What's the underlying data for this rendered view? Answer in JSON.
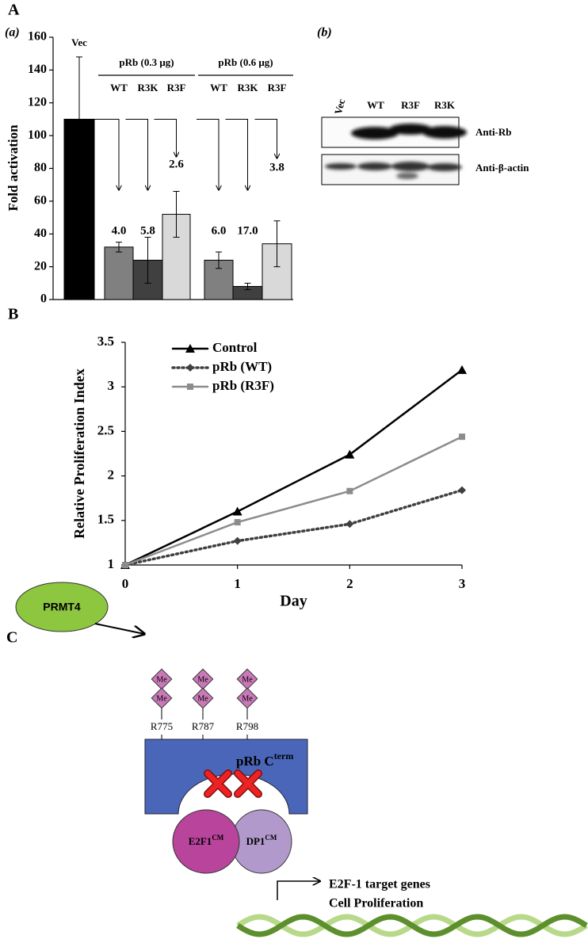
{
  "panels": {
    "A": "A",
    "B": "B",
    "C": "C"
  },
  "chart_data": [
    {
      "type": "bar",
      "panel_label": "(a)",
      "ylabel": "Fold activation",
      "categories": [
        "Vec",
        "WT",
        "R3K",
        "R3F",
        "WT",
        "R3K",
        "R3F"
      ],
      "values": [
        110,
        32,
        24,
        52,
        24,
        8,
        34
      ],
      "errors": [
        38,
        3,
        14,
        14,
        5,
        2,
        14
      ],
      "colors": [
        "#000000",
        "#808080",
        "#404040",
        "#d9d9d9",
        "#808080",
        "#404040",
        "#d9d9d9"
      ],
      "groups": [
        "pRb (0.3 μg)",
        "pRb (0.6 μg)"
      ],
      "annotations": [
        "4.0",
        "5.8",
        "2.6",
        "6.0",
        "17.0",
        "3.8"
      ],
      "ylim": [
        0,
        160
      ],
      "yticks": [
        0,
        20,
        40,
        60,
        80,
        100,
        120,
        140,
        160
      ]
    },
    {
      "type": "line",
      "xlabel": "Day",
      "ylabel": "Relative Proliferation Index",
      "x": [
        0,
        1,
        2,
        3
      ],
      "xlim": [
        0,
        3
      ],
      "xticks": [
        0,
        1,
        2,
        3
      ],
      "ylim": [
        1,
        3.5
      ],
      "yticks": [
        1,
        1.5,
        2,
        2.5,
        3,
        3.5
      ],
      "legend": "top-left",
      "series": [
        {
          "name": "Control",
          "color": "#000000",
          "dashed": false,
          "marker": "triangle",
          "values": [
            1,
            1.6,
            2.24,
            3.19
          ]
        },
        {
          "name": "pRb (WT)",
          "color": "#404040",
          "dashed": true,
          "marker": "diamond",
          "values": [
            1,
            1.27,
            1.46,
            1.84
          ]
        },
        {
          "name": "pRb (R3F)",
          "color": "#8c8c8c",
          "dashed": false,
          "marker": "square",
          "values": [
            1,
            1.48,
            1.83,
            2.44
          ]
        }
      ]
    }
  ],
  "blot": {
    "label": "(b)",
    "lanes": [
      "Vec",
      "WT",
      "R3F",
      "R3K"
    ],
    "rows": [
      "Anti-Rb",
      "Anti-β-actin"
    ]
  },
  "diagram": {
    "enzyme": "PRMT4",
    "methyl": "Me",
    "sites": [
      "R775",
      "R787",
      "R798"
    ],
    "protein": {
      "name": "pRb C",
      "sup": "term"
    },
    "partners": [
      {
        "name": "E2F1",
        "sup": "CM"
      },
      {
        "name": "DP1",
        "sup": "CM"
      }
    ],
    "outcome": [
      "E2F-1 target genes",
      "Cell Proliferation"
    ]
  }
}
